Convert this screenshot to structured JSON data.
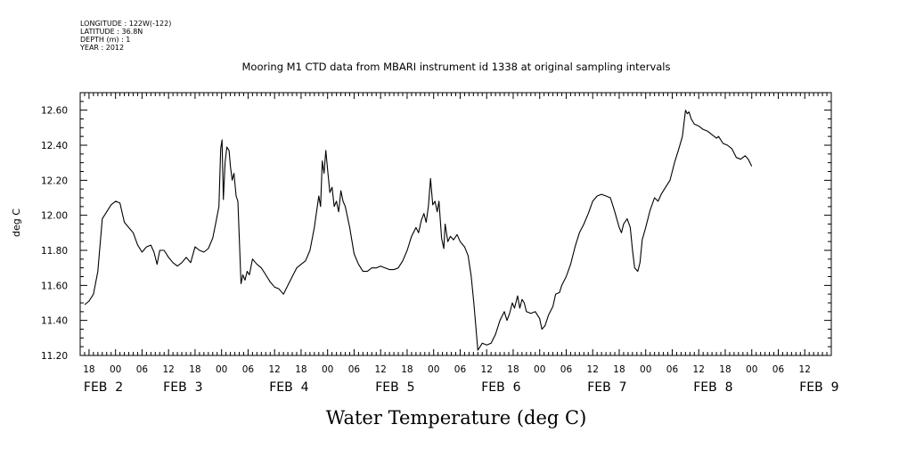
{
  "header": {
    "metadata": [
      "LONGITUDE : 122W(-122)",
      "LATITUDE : 36.8N",
      "DEPTH (m) : 1",
      "YEAR : 2012"
    ],
    "title": "Mooring M1 CTD data from MBARI instrument id 1338 at original sampling intervals"
  },
  "chart_data": {
    "type": "line",
    "title": "Mooring M1 CTD data from MBARI instrument id 1338 at original sampling intervals",
    "xlabel": "Water Temperature (deg C)",
    "ylabel": "deg C",
    "ylim": [
      11.2,
      12.7
    ],
    "y_ticks": [
      "11.20",
      "11.40",
      "11.60",
      "11.80",
      "12.00",
      "12.20",
      "12.40",
      "12.60"
    ],
    "x_range_hours": [
      -8,
      162
    ],
    "x_hour_labels": [
      {
        "h": -6,
        "label": "18"
      },
      {
        "h": 0,
        "label": "00"
      },
      {
        "h": 6,
        "label": "06"
      },
      {
        "h": 12,
        "label": "12"
      },
      {
        "h": 18,
        "label": "18"
      },
      {
        "h": 24,
        "label": "00"
      },
      {
        "h": 30,
        "label": "06"
      },
      {
        "h": 36,
        "label": "12"
      },
      {
        "h": 42,
        "label": "18"
      },
      {
        "h": 48,
        "label": "00"
      },
      {
        "h": 54,
        "label": "06"
      },
      {
        "h": 60,
        "label": "12"
      },
      {
        "h": 66,
        "label": "18"
      },
      {
        "h": 72,
        "label": "00"
      },
      {
        "h": 78,
        "label": "06"
      },
      {
        "h": 84,
        "label": "12"
      },
      {
        "h": 90,
        "label": "18"
      },
      {
        "h": 96,
        "label": "00"
      },
      {
        "h": 102,
        "label": "06"
      },
      {
        "h": 108,
        "label": "12"
      },
      {
        "h": 114,
        "label": "18"
      },
      {
        "h": 120,
        "label": "00"
      },
      {
        "h": 126,
        "label": "06"
      },
      {
        "h": 132,
        "label": "12"
      },
      {
        "h": 138,
        "label": "18"
      },
      {
        "h": 144,
        "label": "00"
      },
      {
        "h": 150,
        "label": "06"
      },
      {
        "h": 156,
        "label": "12"
      }
    ],
    "x_day_labels": [
      {
        "h": -6,
        "label": "FEB  2"
      },
      {
        "h": 12,
        "label": "FEB  3"
      },
      {
        "h": 36,
        "label": "FEB  4"
      },
      {
        "h": 60,
        "label": "FEB  5"
      },
      {
        "h": 84,
        "label": "FEB  6"
      },
      {
        "h": 108,
        "label": "FEB  7"
      },
      {
        "h": 132,
        "label": "FEB  8"
      },
      {
        "h": 156,
        "label": "FEB  9"
      }
    ],
    "series": [
      {
        "points": [
          [
            -7.0,
            11.49
          ],
          [
            -6.0,
            11.51
          ],
          [
            -5.0,
            11.55
          ],
          [
            -4.0,
            11.68
          ],
          [
            -3.0,
            11.98
          ],
          [
            -2.0,
            12.02
          ],
          [
            -1.0,
            12.06
          ],
          [
            0.0,
            12.08
          ],
          [
            1.0,
            12.07
          ],
          [
            2.0,
            11.96
          ],
          [
            3.0,
            11.93
          ],
          [
            4.0,
            11.9
          ],
          [
            5.0,
            11.83
          ],
          [
            6.0,
            11.79
          ],
          [
            7.0,
            11.82
          ],
          [
            8.0,
            11.83
          ],
          [
            8.7,
            11.79
          ],
          [
            9.4,
            11.72
          ],
          [
            10.0,
            11.8
          ],
          [
            11.0,
            11.8
          ],
          [
            12.0,
            11.76
          ],
          [
            13.0,
            11.73
          ],
          [
            14.0,
            11.71
          ],
          [
            15.0,
            11.73
          ],
          [
            16.0,
            11.76
          ],
          [
            17.0,
            11.73
          ],
          [
            18.0,
            11.82
          ],
          [
            19.0,
            11.8
          ],
          [
            20.0,
            11.79
          ],
          [
            21.0,
            11.81
          ],
          [
            22.0,
            11.87
          ],
          [
            22.8,
            11.97
          ],
          [
            23.4,
            12.05
          ],
          [
            23.8,
            12.38
          ],
          [
            24.1,
            12.43
          ],
          [
            24.4,
            12.09
          ],
          [
            24.8,
            12.3
          ],
          [
            25.2,
            12.39
          ],
          [
            25.7,
            12.37
          ],
          [
            26.0,
            12.28
          ],
          [
            26.4,
            12.2
          ],
          [
            26.8,
            12.24
          ],
          [
            27.3,
            12.11
          ],
          [
            27.7,
            12.08
          ],
          [
            28.0,
            11.88
          ],
          [
            28.4,
            11.61
          ],
          [
            28.8,
            11.66
          ],
          [
            29.3,
            11.63
          ],
          [
            29.8,
            11.68
          ],
          [
            30.3,
            11.66
          ],
          [
            31.0,
            11.75
          ],
          [
            32.0,
            11.72
          ],
          [
            33.0,
            11.7
          ],
          [
            34.0,
            11.66
          ],
          [
            35.0,
            11.62
          ],
          [
            36.0,
            11.59
          ],
          [
            37.0,
            11.58
          ],
          [
            38.0,
            11.55
          ],
          [
            39.0,
            11.6
          ],
          [
            40.0,
            11.65
          ],
          [
            41.0,
            11.7
          ],
          [
            42.0,
            11.72
          ],
          [
            43.0,
            11.74
          ],
          [
            44.0,
            11.8
          ],
          [
            45.0,
            11.93
          ],
          [
            46.0,
            12.11
          ],
          [
            46.4,
            12.05
          ],
          [
            46.8,
            12.31
          ],
          [
            47.2,
            12.24
          ],
          [
            47.6,
            12.37
          ],
          [
            48.0,
            12.26
          ],
          [
            48.5,
            12.13
          ],
          [
            49.0,
            12.16
          ],
          [
            49.5,
            12.05
          ],
          [
            50.0,
            12.08
          ],
          [
            50.5,
            12.02
          ],
          [
            51.0,
            12.14
          ],
          [
            51.5,
            12.08
          ],
          [
            52.0,
            12.05
          ],
          [
            53.0,
            11.93
          ],
          [
            54.0,
            11.78
          ],
          [
            55.0,
            11.72
          ],
          [
            56.0,
            11.68
          ],
          [
            57.0,
            11.68
          ],
          [
            58.0,
            11.7
          ],
          [
            59.0,
            11.7
          ],
          [
            60.0,
            11.71
          ],
          [
            61.0,
            11.7
          ],
          [
            62.0,
            11.69
          ],
          [
            63.0,
            11.69
          ],
          [
            64.0,
            11.7
          ],
          [
            65.0,
            11.74
          ],
          [
            66.0,
            11.8
          ],
          [
            67.0,
            11.88
          ],
          [
            68.0,
            11.93
          ],
          [
            68.6,
            11.9
          ],
          [
            69.2,
            11.97
          ],
          [
            69.8,
            12.01
          ],
          [
            70.3,
            11.96
          ],
          [
            70.8,
            12.05
          ],
          [
            71.3,
            12.21
          ],
          [
            71.8,
            12.06
          ],
          [
            72.3,
            12.08
          ],
          [
            72.8,
            12.02
          ],
          [
            73.2,
            12.08
          ],
          [
            73.8,
            11.87
          ],
          [
            74.3,
            11.81
          ],
          [
            74.6,
            11.95
          ],
          [
            75.2,
            11.85
          ],
          [
            75.8,
            11.88
          ],
          [
            76.5,
            11.86
          ],
          [
            77.3,
            11.89
          ],
          [
            78.0,
            11.85
          ],
          [
            79.0,
            11.82
          ],
          [
            79.8,
            11.77
          ],
          [
            80.5,
            11.65
          ],
          [
            81.1,
            11.5
          ],
          [
            81.6,
            11.35
          ],
          [
            82.0,
            11.23
          ],
          [
            82.5,
            11.25
          ],
          [
            83.0,
            11.27
          ],
          [
            84.0,
            11.26
          ],
          [
            85.0,
            11.27
          ],
          [
            86.0,
            11.32
          ],
          [
            87.0,
            11.4
          ],
          [
            88.0,
            11.45
          ],
          [
            88.6,
            11.4
          ],
          [
            89.2,
            11.44
          ],
          [
            89.8,
            11.5
          ],
          [
            90.3,
            11.47
          ],
          [
            91.0,
            11.54
          ],
          [
            91.5,
            11.47
          ],
          [
            92.0,
            11.52
          ],
          [
            92.5,
            11.5
          ],
          [
            93.0,
            11.45
          ],
          [
            94.0,
            11.44
          ],
          [
            95.0,
            11.45
          ],
          [
            96.0,
            11.41
          ],
          [
            96.5,
            11.35
          ],
          [
            97.2,
            11.37
          ],
          [
            98.0,
            11.43
          ],
          [
            99.0,
            11.48
          ],
          [
            99.6,
            11.55
          ],
          [
            100.5,
            11.56
          ],
          [
            101.0,
            11.6
          ],
          [
            102.0,
            11.65
          ],
          [
            103.0,
            11.72
          ],
          [
            104.0,
            11.82
          ],
          [
            105.0,
            11.9
          ],
          [
            106.0,
            11.95
          ],
          [
            107.0,
            12.01
          ],
          [
            108.0,
            12.08
          ],
          [
            109.0,
            12.11
          ],
          [
            110.0,
            12.12
          ],
          [
            111.0,
            12.11
          ],
          [
            112.0,
            12.1
          ],
          [
            113.0,
            12.02
          ],
          [
            114.0,
            11.93
          ],
          [
            114.5,
            11.9
          ],
          [
            115.0,
            11.95
          ],
          [
            115.8,
            11.98
          ],
          [
            116.5,
            11.93
          ],
          [
            117.0,
            11.8
          ],
          [
            117.5,
            11.7
          ],
          [
            118.2,
            11.68
          ],
          [
            118.7,
            11.73
          ],
          [
            119.2,
            11.86
          ],
          [
            120.0,
            11.93
          ],
          [
            121.0,
            12.03
          ],
          [
            122.0,
            12.1
          ],
          [
            122.8,
            12.08
          ],
          [
            123.5,
            12.12
          ],
          [
            124.5,
            12.16
          ],
          [
            125.5,
            12.2
          ],
          [
            126.5,
            12.3
          ],
          [
            127.5,
            12.38
          ],
          [
            128.3,
            12.45
          ],
          [
            129.0,
            12.6
          ],
          [
            129.4,
            12.58
          ],
          [
            129.8,
            12.59
          ],
          [
            130.3,
            12.55
          ],
          [
            131.0,
            12.52
          ],
          [
            132.0,
            12.51
          ],
          [
            133.0,
            12.49
          ],
          [
            134.0,
            12.48
          ],
          [
            135.0,
            12.46
          ],
          [
            136.0,
            12.44
          ],
          [
            136.5,
            12.45
          ],
          [
            137.5,
            12.41
          ],
          [
            138.5,
            12.4
          ],
          [
            139.5,
            12.38
          ],
          [
            140.5,
            12.33
          ],
          [
            141.5,
            12.32
          ],
          [
            142.5,
            12.34
          ],
          [
            143.2,
            12.32
          ],
          [
            144.0,
            12.28
          ]
        ]
      }
    ],
    "grid": false,
    "legend": "none"
  }
}
